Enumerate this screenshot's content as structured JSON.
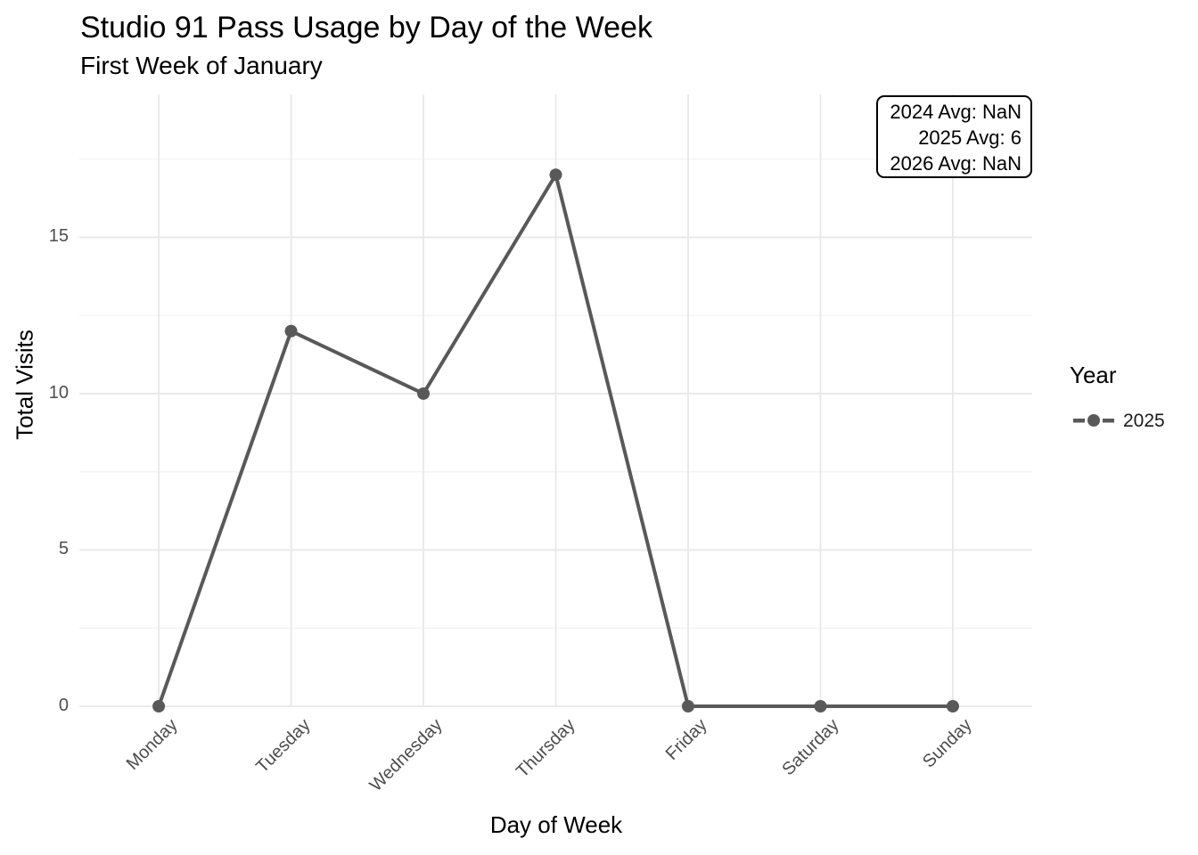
{
  "chart_data": {
    "type": "line",
    "title": "Studio 91 Pass Usage by Day of the Week",
    "subtitle": "First Week of January",
    "xlabel": "Day of Week",
    "ylabel": "Total Visits",
    "categories": [
      "Monday",
      "Tuesday",
      "Wednesday",
      "Thursday",
      "Friday",
      "Saturday",
      "Sunday"
    ],
    "series": [
      {
        "name": "2025",
        "values": [
          0,
          12,
          10,
          17,
          0,
          0,
          0
        ]
      }
    ],
    "ylim": [
      0,
      19.6
    ],
    "yticks": [
      0,
      5,
      10,
      15
    ],
    "yticks_minor": [
      2.5,
      7.5,
      12.5,
      17.5
    ],
    "grid": "major-and-minor, no axis lines, white background",
    "legend_position": "right"
  },
  "annotation_box": {
    "lines": [
      "2024 Avg: NaN",
      "2025 Avg: 6",
      "2026 Avg: NaN"
    ]
  },
  "legend": {
    "title": "Year",
    "entries": [
      {
        "label": "2025",
        "color": "#595959",
        "key": "dashed-line-with-point"
      }
    ]
  },
  "colors": {
    "series": "#595959",
    "grid_major": "#e8e8e8",
    "grid_minor": "#f2f2f2",
    "tick_text": "#4d4d4d",
    "text": "#000000",
    "background": "#ffffff"
  }
}
